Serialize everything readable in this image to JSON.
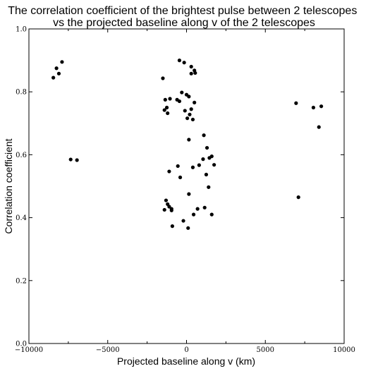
{
  "chart_data": {
    "type": "scatter",
    "title": "The correlation coefficient of the brightest pulse between 2 telescopes\nvs the projected baseline along v of the 2 telescopes",
    "xlabel": "Projected baseline along v (km)",
    "ylabel": "Correlation coefficient",
    "xlim": [
      -10000,
      10000
    ],
    "ylim": [
      0.0,
      1.0
    ],
    "xticks": [
      -10000,
      -5000,
      0,
      5000,
      10000
    ],
    "xtick_labels": [
      "−10000",
      "−5000",
      "0",
      "5000",
      "10000"
    ],
    "yticks": [
      0.0,
      0.2,
      0.4,
      0.6,
      0.8,
      1.0
    ],
    "ytick_labels": [
      "0.0",
      "0.2",
      "0.4",
      "0.6",
      "0.8",
      "1.0"
    ],
    "grid": false,
    "point_color": "#000000",
    "series": [
      {
        "x": [
          -7900,
          -8250,
          -8100,
          -8450,
          -7350,
          -6950,
          -1500,
          -1350,
          -1400,
          -1250,
          -1200,
          -1050,
          -600,
          -450,
          -300,
          -450,
          -150,
          0,
          -100,
          150,
          50,
          200,
          300,
          400,
          500,
          550,
          500,
          300,
          300,
          150,
          1100,
          1300,
          1450,
          1600,
          1050,
          1250,
          1750,
          -1100,
          -550,
          -400,
          400,
          800,
          1400,
          -1300,
          -1200,
          -1100,
          -1400,
          -950,
          -950,
          -900,
          -200,
          100,
          150,
          450,
          700,
          1150,
          1600,
          6950,
          8050,
          8550,
          8400,
          7100
        ],
        "y": [
          0.895,
          0.875,
          0.858,
          0.845,
          0.585,
          0.583,
          0.843,
          0.775,
          0.742,
          0.75,
          0.732,
          0.778,
          0.775,
          0.77,
          0.798,
          0.9,
          0.893,
          0.791,
          0.74,
          0.785,
          0.716,
          0.728,
          0.745,
          0.712,
          0.766,
          0.86,
          0.868,
          0.858,
          0.88,
          0.648,
          0.662,
          0.622,
          0.59,
          0.595,
          0.586,
          0.537,
          0.568,
          0.547,
          0.564,
          0.528,
          0.56,
          0.567,
          0.497,
          0.455,
          0.443,
          0.435,
          0.425,
          0.428,
          0.423,
          0.373,
          0.39,
          0.367,
          0.475,
          0.41,
          0.428,
          0.432,
          0.41,
          0.764,
          0.75,
          0.754,
          0.688,
          0.465
        ]
      }
    ]
  }
}
